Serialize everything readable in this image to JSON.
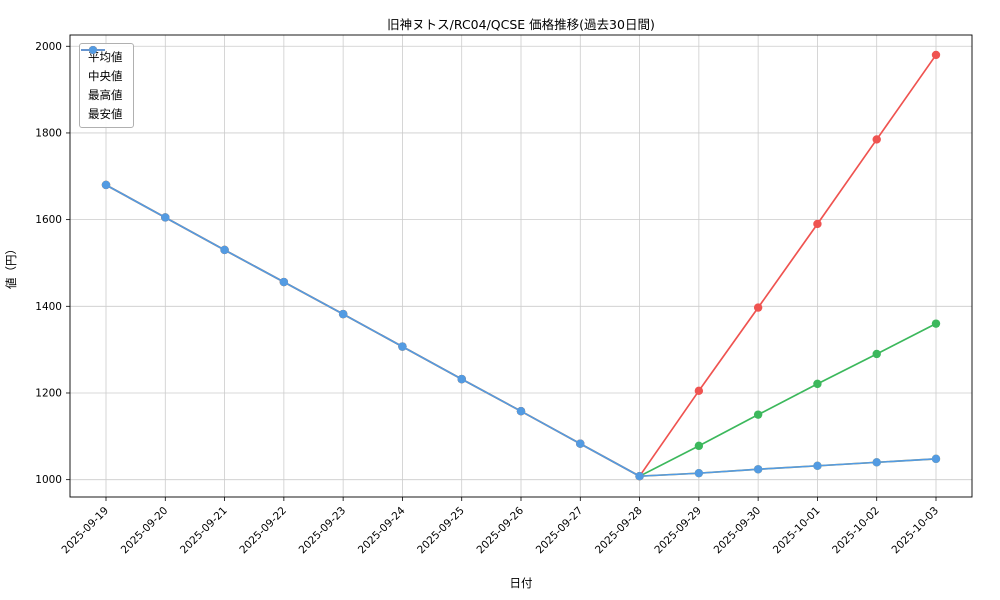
{
  "chart_data": {
    "type": "line",
    "title": "旧神ヌトス/RC04/QCSE 価格推移(過去30日間)",
    "xlabel": "日付",
    "ylabel": "値（円）",
    "categories": [
      "2025-09-19",
      "2025-09-20",
      "2025-09-21",
      "2025-09-22",
      "2025-09-23",
      "2025-09-24",
      "2025-09-25",
      "2025-09-26",
      "2025-09-27",
      "2025-09-28",
      "2025-09-29",
      "2025-09-30",
      "2025-10-01",
      "2025-10-02",
      "2025-10-03"
    ],
    "series": [
      {
        "name": "平均値",
        "color": "#3cb85c",
        "values": [
          1680,
          1605,
          1530,
          1456,
          1382,
          1307,
          1232,
          1158,
          1083,
          1008,
          1078,
          1150,
          1221,
          1290,
          1360
        ]
      },
      {
        "name": "中央値",
        "color": "#ffa500",
        "values": [
          1680,
          1605,
          1530,
          1456,
          1382,
          1307,
          1232,
          1158,
          1083,
          1008,
          1015,
          1024,
          1032,
          1040,
          1048
        ]
      },
      {
        "name": "最高値",
        "color": "#ef5350",
        "values": [
          1680,
          1605,
          1530,
          1456,
          1382,
          1307,
          1232,
          1158,
          1083,
          1008,
          1205,
          1397,
          1590,
          1785,
          1980
        ]
      },
      {
        "name": "最安値",
        "color": "#539be2",
        "values": [
          1680,
          1605,
          1530,
          1456,
          1382,
          1307,
          1232,
          1158,
          1083,
          1008,
          1015,
          1024,
          1032,
          1040,
          1048
        ]
      }
    ],
    "ylim": [
      960,
      2026
    ],
    "yticks": [
      1000,
      1200,
      1400,
      1600,
      1800,
      2000
    ],
    "grid": true,
    "legend_position": "upper left",
    "grid_color": "#cccccc",
    "background_color": "#ffffff"
  }
}
